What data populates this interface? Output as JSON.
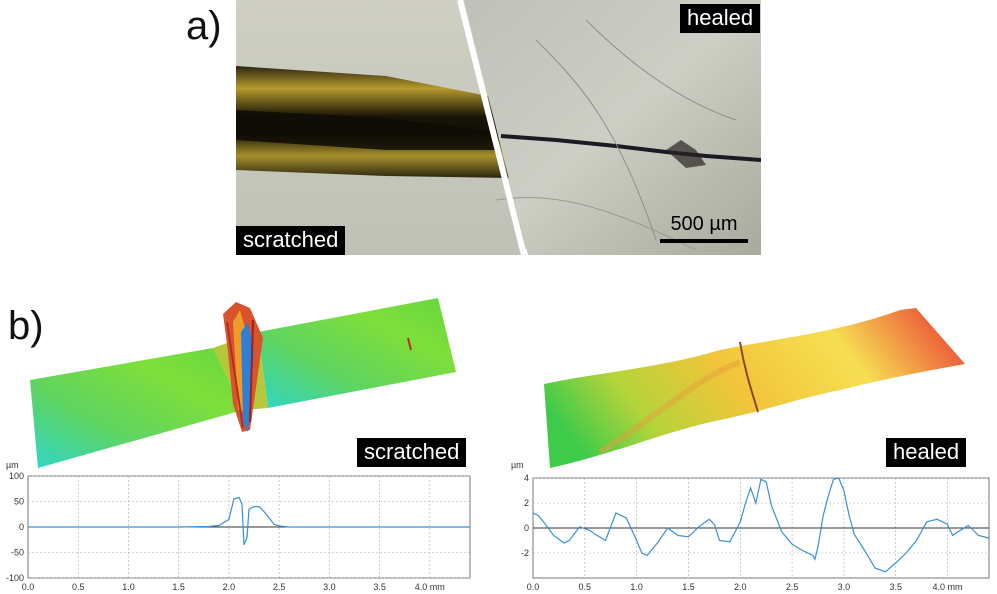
{
  "panels": {
    "a": {
      "label": "a)",
      "left_tag": "scratched",
      "right_tag": "healed",
      "scale_bar": "500 µm"
    },
    "b": {
      "label": "b)",
      "left_tag": "scratched",
      "right_tag": "healed"
    }
  },
  "chart_data": [
    {
      "type": "line",
      "name": "scratched profile",
      "ylabel": "µm",
      "x_unit": "mm",
      "xlim": [
        0,
        4.4
      ],
      "ylim": [
        -100,
        100
      ],
      "xticks": [
        "0.0",
        "0.5",
        "1.0",
        "1.5",
        "2.0",
        "2.5",
        "3.0",
        "3.5",
        "4.0 mm"
      ],
      "yticks": [
        "100",
        "50",
        "0",
        "-50",
        "-100"
      ],
      "grid": true,
      "color": "#3b8fd8",
      "series": [
        {
          "x": [
            0,
            0.5,
            1.0,
            1.5,
            1.8,
            1.9,
            2.0,
            2.05,
            2.1,
            2.13,
            2.15,
            2.18,
            2.2,
            2.25,
            2.3,
            2.35,
            2.4,
            2.45,
            2.5,
            2.6,
            3.0,
            3.5,
            4.0,
            4.4
          ],
          "y": [
            0,
            0,
            0,
            0,
            1,
            3,
            15,
            55,
            58,
            45,
            -35,
            -20,
            35,
            40,
            40,
            30,
            18,
            5,
            2,
            0,
            0,
            0,
            0,
            0
          ]
        }
      ]
    },
    {
      "type": "line",
      "name": "healed profile",
      "ylabel": "µm",
      "x_unit": "mm",
      "xlim": [
        0,
        4.4
      ],
      "ylim": [
        -4,
        4
      ],
      "xticks": [
        "0.0",
        "0.5",
        "1.0",
        "1.5",
        "2.0",
        "2.5",
        "3.0",
        "3.5",
        "4.0 mm"
      ],
      "yticks": [
        "4",
        "2",
        "0",
        "-2"
      ],
      "grid": true,
      "color": "#3b8fd8",
      "series": [
        {
          "x": [
            0,
            0.05,
            0.1,
            0.2,
            0.3,
            0.35,
            0.45,
            0.55,
            0.6,
            0.7,
            0.8,
            0.9,
            1.0,
            1.05,
            1.1,
            1.2,
            1.3,
            1.4,
            1.5,
            1.6,
            1.7,
            1.75,
            1.8,
            1.9,
            2.0,
            2.05,
            2.1,
            2.15,
            2.2,
            2.25,
            2.3,
            2.4,
            2.5,
            2.6,
            2.7,
            2.72,
            2.75,
            2.8,
            2.85,
            2.9,
            2.95,
            3.0,
            3.05,
            3.1,
            3.2,
            3.3,
            3.4,
            3.5,
            3.6,
            3.7,
            3.8,
            3.9,
            4.0,
            4.05,
            4.1,
            4.2,
            4.3,
            4.4
          ],
          "y": [
            1.2,
            1.0,
            0.5,
            -0.6,
            -1.2,
            -1.0,
            0.1,
            -0.2,
            -0.5,
            -1.0,
            1.2,
            0.8,
            -1.0,
            -2.0,
            -2.2,
            -1.2,
            0.0,
            -0.6,
            -0.7,
            0.1,
            0.7,
            0.3,
            -1.0,
            -1.1,
            0.5,
            2.0,
            3.2,
            2.0,
            3.9,
            3.7,
            1.8,
            -0.3,
            -1.3,
            -1.8,
            -2.2,
            -2.5,
            -1.5,
            1.0,
            2.6,
            3.9,
            4.0,
            3.0,
            1.0,
            -0.5,
            -1.8,
            -3.2,
            -3.5,
            -2.8,
            -2.0,
            -1.0,
            0.5,
            0.7,
            0.3,
            -0.6,
            -0.3,
            0.2,
            -0.6,
            -0.8
          ]
        }
      ]
    }
  ]
}
